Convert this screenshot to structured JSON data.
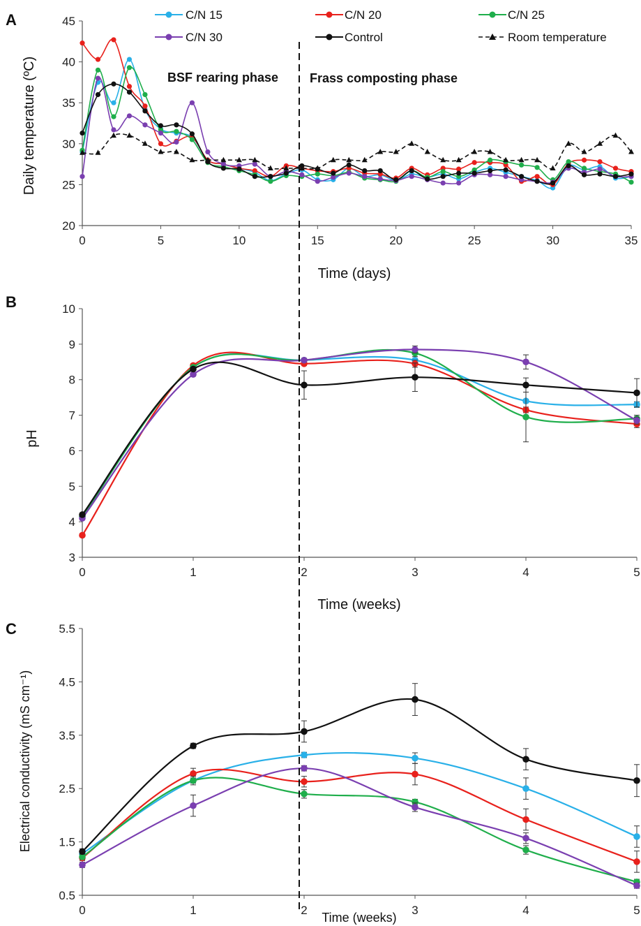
{
  "chart_data": [
    {
      "panel": "A",
      "type": "line",
      "xlabel": "Time (days)",
      "ylabel": "Daily temperature (ºC)",
      "xlim": [
        0,
        35
      ],
      "ylim": [
        20,
        45
      ],
      "xticks": [
        0,
        5,
        10,
        15,
        20,
        25,
        30,
        35
      ],
      "yticks": [
        20,
        25,
        30,
        35,
        40,
        45
      ],
      "x": [
        0,
        1,
        2,
        3,
        4,
        5,
        6,
        7,
        8,
        9,
        10,
        11,
        12,
        13,
        14,
        15,
        16,
        17,
        18,
        19,
        20,
        21,
        22,
        23,
        24,
        25,
        26,
        27,
        28,
        29,
        30,
        31,
        32,
        33,
        34,
        35
      ],
      "annotations": [
        "BSF rearing phase",
        "Frass composting phase"
      ],
      "divider_x": 14,
      "legend_position": "top",
      "series": [
        {
          "name": "C/N 15",
          "color": "#29b0e8",
          "style": "solid",
          "marker": "circle",
          "values": [
            29.0,
            37.5,
            35.0,
            40.3,
            34.2,
            31.8,
            31.3,
            30.8,
            28.0,
            27.5,
            27.0,
            26.5,
            25.5,
            26.3,
            26.8,
            25.6,
            25.6,
            27.0,
            26.0,
            26.2,
            25.5,
            26.3,
            25.9,
            26.3,
            25.7,
            26.5,
            27.0,
            26.5,
            26.0,
            25.5,
            24.6,
            27.3,
            26.8,
            27.2,
            25.8,
            26.0
          ]
        },
        {
          "name": "C/N 20",
          "color": "#e8211c",
          "style": "solid",
          "marker": "circle",
          "values": [
            42.3,
            40.3,
            42.7,
            37.0,
            34.6,
            30.0,
            30.3,
            30.8,
            28.0,
            27.5,
            27.0,
            26.7,
            26.0,
            27.3,
            27.0,
            26.7,
            26.6,
            27.0,
            26.4,
            26.3,
            25.8,
            27.0,
            26.2,
            27.0,
            26.9,
            27.7,
            27.7,
            27.4,
            25.4,
            26.0,
            25.0,
            27.6,
            28.0,
            27.8,
            27.0,
            26.6
          ]
        },
        {
          "name": "C/N 25",
          "color": "#1fae4b",
          "style": "solid",
          "marker": "circle",
          "values": [
            29.2,
            39.0,
            33.3,
            39.3,
            36.0,
            31.7,
            31.5,
            30.5,
            27.7,
            27.2,
            26.7,
            26.2,
            25.4,
            26.1,
            26.0,
            26.3,
            26.1,
            26.5,
            25.8,
            25.6,
            25.4,
            26.7,
            25.9,
            26.6,
            26.0,
            26.8,
            28.0,
            27.8,
            27.4,
            27.1,
            25.6,
            27.8,
            27.0,
            26.6,
            26.3,
            25.3
          ]
        },
        {
          "name": "C/N 30",
          "color": "#7a3fb0",
          "style": "solid",
          "marker": "circle",
          "values": [
            26.0,
            38.0,
            31.7,
            33.4,
            32.3,
            31.3,
            30.2,
            35.0,
            29.0,
            27.5,
            27.3,
            27.5,
            26.0,
            26.6,
            26.2,
            25.4,
            25.9,
            26.4,
            26.0,
            25.7,
            25.5,
            26.0,
            25.6,
            25.2,
            25.2,
            26.2,
            26.2,
            26.0,
            25.6,
            25.4,
            25.3,
            27.0,
            26.5,
            26.9,
            26.0,
            26.0
          ]
        },
        {
          "name": "Control",
          "color": "#111111",
          "style": "solid",
          "marker": "circle",
          "values": [
            31.3,
            36.0,
            37.3,
            36.3,
            34.0,
            32.2,
            32.3,
            31.2,
            27.8,
            27.0,
            26.9,
            26.0,
            26.0,
            26.4,
            27.3,
            26.9,
            26.4,
            27.4,
            26.7,
            26.7,
            25.6,
            26.7,
            25.7,
            26.0,
            26.4,
            26.4,
            26.7,
            26.8,
            26.0,
            25.4,
            25.2,
            27.3,
            26.2,
            26.3,
            26.0,
            26.3
          ]
        },
        {
          "name": "Room temperature",
          "color": "#111111",
          "style": "dashed",
          "marker": "triangle",
          "values": [
            28.9,
            28.9,
            31.0,
            31.0,
            30.0,
            29.0,
            29.0,
            28.0,
            28.0,
            28.0,
            28.0,
            28.0,
            27.0,
            27.0,
            27.0,
            27.0,
            28.0,
            28.0,
            28.0,
            29.0,
            29.0,
            30.0,
            29.0,
            28.0,
            28.0,
            29.0,
            29.0,
            28.0,
            28.0,
            28.0,
            27.0,
            30.0,
            29.0,
            30.0,
            31.0,
            29.0
          ]
        }
      ]
    },
    {
      "panel": "B",
      "type": "line",
      "xlabel": "Time (weeks)",
      "ylabel": "pH",
      "xlim": [
        0,
        5
      ],
      "ylim": [
        3,
        10
      ],
      "xticks": [
        0,
        1,
        2,
        3,
        4,
        5
      ],
      "yticks": [
        3,
        4,
        5,
        6,
        7,
        8,
        9,
        10
      ],
      "x": [
        0,
        1,
        2,
        3,
        4,
        5
      ],
      "divider_x": 1.95,
      "series": [
        {
          "name": "C/N 15",
          "color": "#29b0e8",
          "values": [
            4.15,
            8.35,
            8.55,
            8.55,
            7.4,
            7.3
          ],
          "errors": [
            0.05,
            0.05,
            0.05,
            0.05,
            0.05,
            0.08
          ]
        },
        {
          "name": "C/N 20",
          "color": "#e8211c",
          "values": [
            3.62,
            8.4,
            8.45,
            8.45,
            7.15,
            6.75
          ],
          "errors": [
            0.05,
            0.05,
            0.05,
            0.1,
            0.08,
            0.1
          ]
        },
        {
          "name": "C/N 25",
          "color": "#1fae4b",
          "values": [
            4.15,
            8.35,
            8.55,
            8.75,
            6.95,
            6.9
          ],
          "errors": [
            0.05,
            0.05,
            0.05,
            0.1,
            0.7,
            0.1
          ]
        },
        {
          "name": "C/N 30",
          "color": "#7a3fb0",
          "values": [
            4.1,
            8.15,
            8.55,
            8.85,
            8.5,
            6.85
          ],
          "errors": [
            0.05,
            0.05,
            0.05,
            0.1,
            0.2,
            0.1
          ]
        },
        {
          "name": "Control",
          "color": "#111111",
          "values": [
            4.2,
            8.3,
            7.85,
            8.07,
            7.85,
            7.63
          ],
          "errors": [
            0.05,
            0.05,
            0.4,
            0.4,
            0.2,
            0.4
          ]
        }
      ]
    },
    {
      "panel": "C",
      "type": "line",
      "xlabel": "Time (weeks)",
      "ylabel": "Electrical conductivity (mS cm⁻¹)",
      "xlim": [
        0,
        5
      ],
      "ylim": [
        0.5,
        5.5
      ],
      "xticks": [
        0,
        1,
        2,
        3,
        4,
        5
      ],
      "yticks": [
        0.5,
        1.5,
        2.5,
        3.5,
        4.5,
        5.5
      ],
      "x": [
        0,
        1,
        2,
        3,
        4,
        5
      ],
      "divider_x": 1.95,
      "series": [
        {
          "name": "C/N 15",
          "color": "#29b0e8",
          "values": [
            1.28,
            2.65,
            3.13,
            3.07,
            2.5,
            1.6
          ],
          "errors": [
            0.05,
            0.05,
            0.05,
            0.1,
            0.2,
            0.2
          ]
        },
        {
          "name": "C/N 20",
          "color": "#e8211c",
          "values": [
            1.2,
            2.78,
            2.63,
            2.77,
            1.92,
            1.13
          ],
          "errors": [
            0.05,
            0.1,
            0.1,
            0.2,
            0.2,
            0.2
          ]
        },
        {
          "name": "C/N 25",
          "color": "#1fae4b",
          "values": [
            1.22,
            2.65,
            2.4,
            2.25,
            1.35,
            0.75
          ],
          "errors": [
            0.05,
            0.08,
            0.08,
            0.05,
            0.08,
            0.05
          ]
        },
        {
          "name": "C/N 30",
          "color": "#7a3fb0",
          "values": [
            1.07,
            2.18,
            2.88,
            2.15,
            1.57,
            0.68
          ],
          "errors": [
            0.05,
            0.2,
            0.05,
            0.08,
            0.1,
            0.05
          ]
        },
        {
          "name": "Control",
          "color": "#111111",
          "values": [
            1.32,
            3.3,
            3.57,
            4.17,
            3.05,
            2.65
          ],
          "errors": [
            0.05,
            0.05,
            0.2,
            0.3,
            0.2,
            0.3
          ]
        }
      ]
    }
  ]
}
